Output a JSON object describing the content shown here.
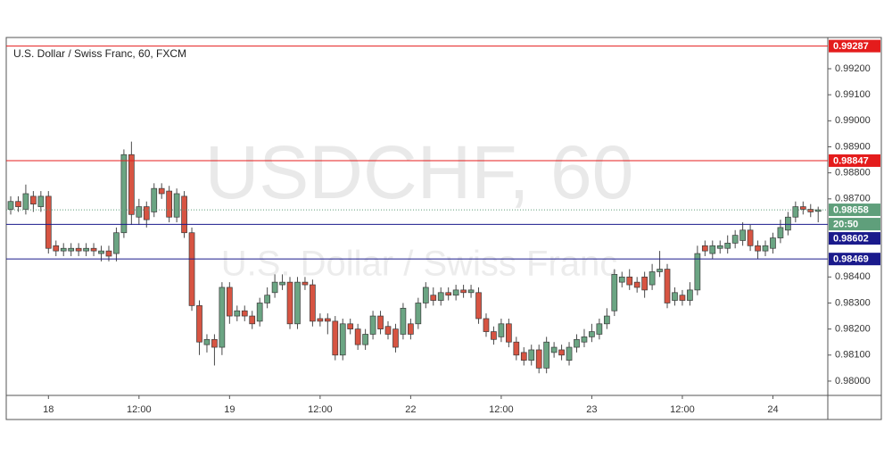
{
  "chart_data": {
    "type": "candlestick",
    "title": "U.S. Dollar / Swiss Franc, 60, FXCM",
    "watermark": "USDCHF, 60",
    "watermark_subtitle": "U.S. Dollar / Swiss Franc",
    "categories": [
      null,
      null,
      null,
      null,
      null,
      "18",
      null,
      null,
      null,
      null,
      null,
      null,
      null,
      null,
      null,
      null,
      null,
      "12:00",
      null,
      null,
      null,
      null,
      null,
      null,
      null,
      null,
      null,
      null,
      null,
      "19",
      null,
      null,
      null,
      null,
      null,
      null,
      null,
      null,
      null,
      null,
      null,
      "12:00",
      null,
      null,
      null,
      null,
      null,
      null,
      null,
      null,
      null,
      null,
      null,
      "22",
      null,
      null,
      null,
      null,
      null,
      null,
      null,
      null,
      null,
      null,
      null,
      "12:00",
      null,
      null,
      null,
      null,
      null,
      null,
      null,
      null,
      null,
      null,
      null,
      "23",
      null,
      null,
      null,
      null,
      null,
      null,
      null,
      null,
      null,
      null,
      null,
      "12:00",
      null,
      null,
      null,
      null,
      null,
      null,
      null,
      null,
      null,
      null,
      null,
      "24",
      null,
      null,
      null,
      null,
      null,
      null
    ],
    "open": [
      0.9866,
      0.9869,
      0.9866,
      0.9871,
      0.9867,
      0.9871,
      0.9852,
      0.985,
      0.985,
      0.9851,
      0.985,
      0.9851,
      0.9849,
      0.985,
      0.9849,
      0.9857,
      0.9887,
      0.9863,
      0.9867,
      0.9865,
      0.9874,
      0.9873,
      0.9863,
      0.9871,
      0.9857,
      0.9829,
      0.9814,
      0.9816,
      0.9813,
      0.9836,
      0.9825,
      0.9827,
      0.9825,
      0.9823,
      0.983,
      0.9834,
      0.9837,
      0.9838,
      0.9822,
      0.9838,
      0.9837,
      0.9824,
      0.9824,
      0.9823,
      0.981,
      0.9822,
      0.982,
      0.9814,
      0.9818,
      0.9825,
      0.9821,
      0.982,
      0.9818,
      0.9822,
      0.9822,
      0.983,
      0.9833,
      0.9831,
      0.9834,
      0.9833,
      0.9835,
      0.9834,
      0.9834,
      0.9824,
      0.9819,
      0.9817,
      0.9822,
      0.9815,
      0.9811,
      0.9808,
      0.9812,
      0.9805,
      0.9811,
      0.9812,
      0.9808,
      0.9813,
      0.9815,
      0.9817,
      0.9818,
      0.9822,
      0.9827,
      0.9838,
      0.984,
      0.9838,
      0.984,
      0.9837,
      0.9842,
      0.9843,
      0.9831,
      0.9833,
      0.9831,
      0.9835,
      0.9852,
      0.9849,
      0.9851,
      0.9851,
      0.9853,
      0.9854,
      0.9858,
      0.9852,
      0.985,
      0.9851,
      0.9855,
      0.9858,
      0.9863,
      0.9867,
      0.9866,
      0.98652
    ],
    "high": [
      0.9871,
      0.9871,
      0.98755,
      0.9873,
      0.9873,
      0.9873,
      0.9854,
      0.9853,
      0.9853,
      0.9853,
      0.9853,
      0.9853,
      0.9852,
      0.9852,
      0.9859,
      0.9889,
      0.9892,
      0.987,
      0.9869,
      0.9876,
      0.9876,
      0.9875,
      0.9874,
      0.9873,
      0.9859,
      0.9831,
      0.9818,
      0.9818,
      0.9838,
      0.9838,
      0.9829,
      0.9829,
      0.9827,
      0.9832,
      0.9836,
      0.9841,
      0.9841,
      0.984,
      0.984,
      0.984,
      0.9839,
      0.9826,
      0.9826,
      0.9825,
      0.9824,
      0.9824,
      0.9822,
      0.982,
      0.9827,
      0.9827,
      0.9823,
      0.9822,
      0.983,
      0.9824,
      0.9832,
      0.9838,
      0.9836,
      0.9836,
      0.9836,
      0.9837,
      0.9837,
      0.9837,
      0.9836,
      0.9826,
      0.9821,
      0.9824,
      0.9824,
      0.9817,
      0.9813,
      0.9814,
      0.9814,
      0.9817,
      0.9815,
      0.9814,
      0.9815,
      0.9818,
      0.982,
      0.9822,
      0.9824,
      0.9828,
      0.9843,
      0.9842,
      0.9843,
      0.984,
      0.9842,
      0.9845,
      0.985,
      0.9845,
      0.9836,
      0.9835,
      0.9838,
      0.9852,
      0.9854,
      0.9854,
      0.9854,
      0.9856,
      0.9858,
      0.9861,
      0.986,
      0.9854,
      0.9854,
      0.9857,
      0.9862,
      0.9865,
      0.9869,
      0.9869,
      0.9868,
      0.9867
    ],
    "low": [
      0.9864,
      0.9865,
      0.9864,
      0.9865,
      0.9865,
      0.9849,
      0.9848,
      0.9848,
      0.9848,
      0.9848,
      0.9848,
      0.9848,
      0.9846,
      0.9846,
      0.9846,
      0.9855,
      0.986,
      0.986,
      0.9859,
      0.9863,
      0.987,
      0.9861,
      0.9861,
      0.9855,
      0.9827,
      0.981,
      0.9811,
      0.9806,
      0.981,
      0.9822,
      0.9823,
      0.9823,
      0.982,
      0.9821,
      0.9828,
      0.9832,
      0.9835,
      0.982,
      0.982,
      0.9835,
      0.9821,
      0.9821,
      0.9818,
      0.9808,
      0.9808,
      0.9818,
      0.9812,
      0.9812,
      0.9816,
      0.9818,
      0.9816,
      0.9811,
      0.9816,
      0.9816,
      0.982,
      0.9828,
      0.9829,
      0.9829,
      0.9831,
      0.9831,
      0.9832,
      0.9832,
      0.9822,
      0.9817,
      0.9814,
      0.9815,
      0.9813,
      0.9808,
      0.9806,
      0.9806,
      0.9803,
      0.9803,
      0.9809,
      0.9808,
      0.9806,
      0.9811,
      0.9813,
      0.9815,
      0.9816,
      0.982,
      0.9825,
      0.9836,
      0.9835,
      0.9834,
      0.9832,
      0.9835,
      0.984,
      0.9828,
      0.9829,
      0.9829,
      0.9829,
      0.9833,
      0.9848,
      0.9847,
      0.9849,
      0.9849,
      0.9851,
      0.9852,
      0.985,
      0.9847,
      0.9848,
      0.9849,
      0.9853,
      0.9856,
      0.9861,
      0.9864,
      0.9863,
      0.9861
    ],
    "close": [
      0.9869,
      0.9867,
      0.9872,
      0.9868,
      0.9871,
      0.9851,
      0.985,
      0.9851,
      0.9851,
      0.985,
      0.9851,
      0.985,
      0.985,
      0.9848,
      0.9857,
      0.9887,
      0.9864,
      0.9867,
      0.9862,
      0.9874,
      0.9872,
      0.9863,
      0.9872,
      0.9857,
      0.9829,
      0.9815,
      0.9816,
      0.9813,
      0.9836,
      0.9825,
      0.9827,
      0.9825,
      0.9822,
      0.983,
      0.9833,
      0.9838,
      0.9838,
      0.9822,
      0.9838,
      0.9837,
      0.9823,
      0.9823,
      0.9823,
      0.981,
      0.9822,
      0.982,
      0.9814,
      0.9818,
      0.9825,
      0.982,
      0.9818,
      0.9813,
      0.9828,
      0.9818,
      0.983,
      0.9836,
      0.9831,
      0.9834,
      0.9833,
      0.9835,
      0.9834,
      0.9835,
      0.9824,
      0.9819,
      0.9816,
      0.9822,
      0.9815,
      0.981,
      0.9808,
      0.9812,
      0.9805,
      0.9815,
      0.9813,
      0.981,
      0.9813,
      0.9816,
      0.9817,
      0.9819,
      0.9822,
      0.9825,
      0.9841,
      0.984,
      0.9837,
      0.9836,
      0.9835,
      0.9842,
      0.9843,
      0.983,
      0.9834,
      0.9831,
      0.9835,
      0.9849,
      0.985,
      0.9852,
      0.9852,
      0.9853,
      0.9856,
      0.9858,
      0.9852,
      0.985,
      0.9852,
      0.9855,
      0.9859,
      0.9863,
      0.9867,
      0.9866,
      0.9865,
      0.98658
    ],
    "up_color": "#6ba583",
    "down_color": "#d75442",
    "ylim": [
      0.97945,
      0.9932
    ],
    "yticks": [
      {
        "value": 0.98,
        "label": "0.98000"
      },
      {
        "value": 0.981,
        "label": "0.98100"
      },
      {
        "value": 0.982,
        "label": "0.98200"
      },
      {
        "value": 0.983,
        "label": "0.98300"
      },
      {
        "value": 0.984,
        "label": "0.98400"
      },
      {
        "value": 0.987,
        "label": "0.98700"
      },
      {
        "value": 0.988,
        "label": "0.98800"
      },
      {
        "value": 0.989,
        "label": "0.98900"
      },
      {
        "value": 0.99,
        "label": "0.99000"
      },
      {
        "value": 0.991,
        "label": "0.99100"
      },
      {
        "value": 0.992,
        "label": "0.99200"
      }
    ],
    "levels": [
      {
        "value": 0.99287,
        "color": "#e41c1c"
      },
      {
        "value": 0.98847,
        "color": "#e41c1c"
      },
      {
        "value": 0.98602,
        "color": "#1a1a8c"
      },
      {
        "value": 0.98469,
        "color": "#1a1a8c"
      }
    ],
    "last_price": 0.98658,
    "last_color": "#5f9f7b",
    "countdown": "20:50"
  }
}
